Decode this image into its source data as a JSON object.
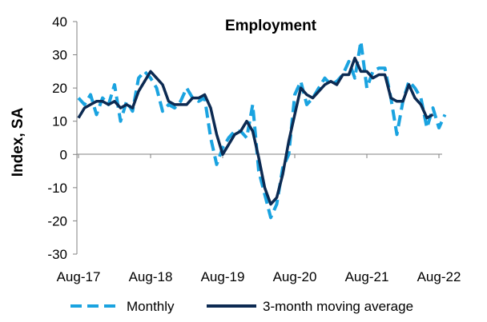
{
  "chart_data": {
    "type": "line",
    "title": "Employment",
    "ylabel": "Index, SA",
    "xlabel": "",
    "ylim": [
      -30,
      40
    ],
    "yticks": [
      -30,
      -20,
      -10,
      0,
      10,
      20,
      30,
      40
    ],
    "xtick_labels": [
      "Aug-17",
      "Aug-18",
      "Aug-19",
      "Aug-20",
      "Aug-21",
      "Aug-22"
    ],
    "xtick_month_index": [
      0,
      12,
      24,
      36,
      48,
      60
    ],
    "grid": false,
    "legend_position": "bottom",
    "series": [
      {
        "name": "Monthly",
        "style": "dashed",
        "color": "#1aa3e0",
        "values": [
          17,
          15,
          18,
          12,
          17,
          15,
          21,
          10,
          16,
          13,
          23,
          25,
          23,
          20,
          13,
          15,
          14,
          16,
          20,
          17,
          16,
          17,
          5,
          -3,
          2,
          5,
          7,
          7,
          5,
          15,
          -5,
          -12,
          -19,
          -15,
          -4,
          0,
          18,
          22,
          15,
          17,
          20,
          23,
          21,
          22,
          24,
          28,
          23,
          34,
          20,
          25,
          26,
          26,
          17,
          6,
          16,
          22,
          20,
          17,
          8,
          14,
          8,
          12
        ],
        "point_positions": [
          0,
          1,
          2,
          3,
          4,
          5,
          6,
          7,
          8,
          9,
          10,
          11,
          12,
          13,
          14,
          15,
          16,
          17,
          18,
          19,
          20,
          21,
          22,
          23,
          24,
          25,
          26,
          27,
          28,
          29,
          30,
          31,
          32,
          33,
          34,
          35,
          36,
          37,
          38,
          39,
          40,
          41,
          42,
          43,
          44,
          45,
          46,
          47,
          48,
          49,
          50,
          51,
          52,
          53,
          54,
          55,
          56,
          57,
          58,
          59,
          60,
          61
        ]
      },
      {
        "name": "3-month moving average",
        "style": "solid",
        "color": "#0c2a52",
        "values": [
          11,
          14,
          15,
          16,
          16,
          15,
          16,
          14,
          15,
          14,
          19,
          22,
          25,
          23,
          21,
          16,
          15,
          15,
          15,
          17,
          17,
          18,
          14,
          6,
          0,
          3,
          6,
          7,
          10,
          7,
          -1,
          -10,
          -15,
          -13,
          -6,
          4,
          12,
          20,
          18,
          17,
          19,
          21,
          22,
          21,
          24,
          24,
          29,
          25,
          25,
          23,
          24,
          24,
          17,
          16,
          16,
          21,
          17,
          15,
          11,
          12
        ],
        "point_positions": [
          0,
          1,
          2,
          3,
          4,
          5,
          6,
          7,
          8,
          9,
          10,
          11,
          12,
          13,
          14,
          15,
          16,
          17,
          18,
          19,
          20,
          21,
          22,
          23,
          24,
          25,
          26,
          27,
          28,
          29,
          30,
          31,
          32,
          33,
          34,
          35,
          36,
          37,
          38,
          39,
          40,
          41,
          42,
          43,
          44,
          45,
          46,
          47,
          48,
          49,
          50,
          51,
          52,
          53,
          54,
          55,
          56,
          57,
          58,
          59
        ]
      }
    ]
  }
}
